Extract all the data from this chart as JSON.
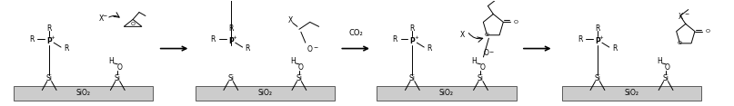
{
  "bg_color": "#ffffff",
  "surface_color": "#cccccc",
  "surface_edge_color": "#444444",
  "text_color": "#000000",
  "figsize": [
    8.07,
    1.17
  ],
  "dpi": 100,
  "sio2": "SiO₂",
  "co2": "CO₂",
  "stages": [
    0.11,
    0.36,
    0.61,
    0.865
  ],
  "arrows": [
    0.235,
    0.485,
    0.735
  ],
  "co2_arrow_idx": 1
}
